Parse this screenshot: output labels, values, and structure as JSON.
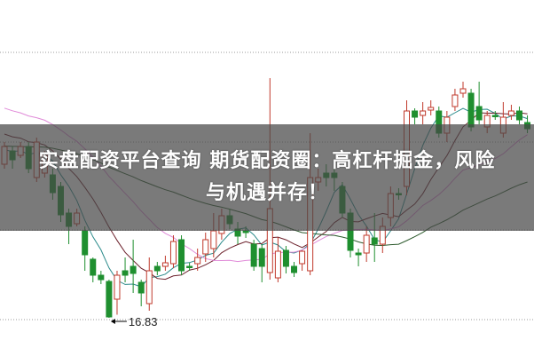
{
  "headline": {
    "line1": "实盘配资平台查询 期货配资圈：高杠杆掘金，风险",
    "line2": "与机遇并存！"
  },
  "chart_data": {
    "type": "candlestick",
    "low_marker_label": "16.83",
    "grid": "dotted horizontal",
    "colors": {
      "up": "#c0392b",
      "down": "#1f8f2f",
      "ma_a": "#2a8a8a",
      "ma_b": "#6b1f2a",
      "ma_c": "#e08ad8",
      "ma_d": "#2d5a2d",
      "grid": "#999999"
    },
    "ohlc": [
      [
        20.29,
        20.79,
        20.19,
        20.69
      ],
      [
        20.59,
        20.69,
        20.19,
        20.39
      ],
      [
        20.49,
        20.79,
        20.43,
        20.69
      ],
      [
        20.69,
        20.79,
        20.09,
        20.19
      ],
      [
        19.99,
        20.89,
        19.89,
        20.79
      ],
      [
        20.09,
        20.59,
        19.99,
        20.49
      ],
      [
        20.05,
        20.19,
        19.49,
        19.65
      ],
      [
        19.79,
        19.89,
        18.99,
        19.15
      ],
      [
        19.19,
        19.29,
        18.49,
        18.89
      ],
      [
        18.95,
        19.29,
        18.89,
        19.19
      ],
      [
        18.79,
        18.89,
        17.89,
        18.25
      ],
      [
        18.15,
        18.19,
        17.63,
        17.79
      ],
      [
        17.79,
        17.89,
        17.59,
        17.69
      ],
      [
        17.65,
        17.69,
        16.83,
        16.85
      ],
      [
        17.25,
        17.89,
        16.9,
        17.79
      ],
      [
        17.89,
        18.19,
        17.63,
        17.79
      ],
      [
        17.99,
        18.59,
        17.39,
        17.83
      ],
      [
        17.63,
        17.69,
        17.09,
        17.39
      ],
      [
        17.15,
        18.19,
        16.99,
        17.89
      ],
      [
        17.99,
        18.09,
        17.79,
        17.89
      ],
      [
        17.99,
        18.23,
        17.89,
        18.07
      ],
      [
        18.05,
        18.69,
        17.95,
        18.55
      ],
      [
        18.59,
        18.69,
        17.79,
        17.89
      ],
      [
        17.99,
        18.07,
        17.89,
        17.97
      ],
      [
        18.05,
        18.39,
        17.89,
        18.19
      ],
      [
        18.27,
        18.75,
        18.09,
        18.59
      ],
      [
        18.39,
        19.19,
        18.19,
        18.79
      ],
      [
        18.73,
        19.29,
        18.59,
        19.13
      ],
      [
        19.13,
        19.29,
        18.83,
        18.95
      ],
      [
        18.83,
        18.99,
        18.49,
        18.67
      ],
      [
        18.79,
        18.89,
        18.63,
        18.75
      ],
      [
        18.49,
        18.59,
        17.89,
        17.99
      ],
      [
        18.39,
        18.49,
        17.63,
        17.99
      ],
      [
        17.85,
        22.23,
        17.69,
        19.29
      ],
      [
        17.73,
        18.65,
        17.63,
        18.33
      ],
      [
        18.35,
        18.45,
        17.83,
        17.99
      ],
      [
        17.99,
        18.09,
        17.75,
        17.85
      ],
      [
        18.05,
        18.35,
        17.89,
        18.33
      ],
      [
        17.89,
        20.99,
        17.79,
        19.99
      ],
      [
        19.89,
        20.19,
        19.69,
        19.99
      ],
      [
        20.09,
        20.29,
        19.79,
        19.99
      ],
      [
        20.09,
        20.39,
        19.69,
        19.99
      ],
      [
        19.79,
        19.89,
        19.09,
        19.19
      ],
      [
        19.19,
        19.29,
        18.19,
        18.35
      ],
      [
        18.29,
        18.39,
        17.99,
        18.25
      ],
      [
        18.29,
        18.89,
        18.09,
        18.69
      ],
      [
        18.63,
        19.19,
        18.09,
        18.49
      ],
      [
        18.49,
        19.09,
        18.29,
        18.89
      ],
      [
        19.09,
        19.79,
        18.89,
        19.63
      ],
      [
        19.63,
        19.75,
        19.49,
        19.61
      ],
      [
        19.79,
        21.73,
        19.59,
        21.49
      ],
      [
        21.49,
        21.55,
        21.19,
        21.35
      ],
      [
        21.39,
        21.69,
        21.19,
        21.49
      ],
      [
        21.51,
        21.73,
        21.39,
        21.57
      ],
      [
        21.49,
        21.59,
        20.89,
        20.99
      ],
      [
        20.99,
        21.49,
        20.79,
        21.35
      ],
      [
        21.59,
        21.99,
        21.49,
        21.85
      ],
      [
        21.89,
        22.15,
        21.79,
        21.99
      ],
      [
        21.89,
        21.99,
        21.03,
        21.13
      ],
      [
        21.59,
        22.15,
        21.19,
        21.29
      ],
      [
        21.13,
        21.49,
        20.99,
        21.39
      ],
      [
        21.39,
        21.49,
        21.29,
        21.37
      ],
      [
        20.99,
        21.69,
        20.89,
        21.35
      ],
      [
        21.39,
        21.63,
        21.29,
        21.49
      ],
      [
        21.49,
        21.59,
        21.19,
        21.29
      ],
      [
        21.23,
        21.39,
        20.99,
        21.09
      ]
    ]
  }
}
